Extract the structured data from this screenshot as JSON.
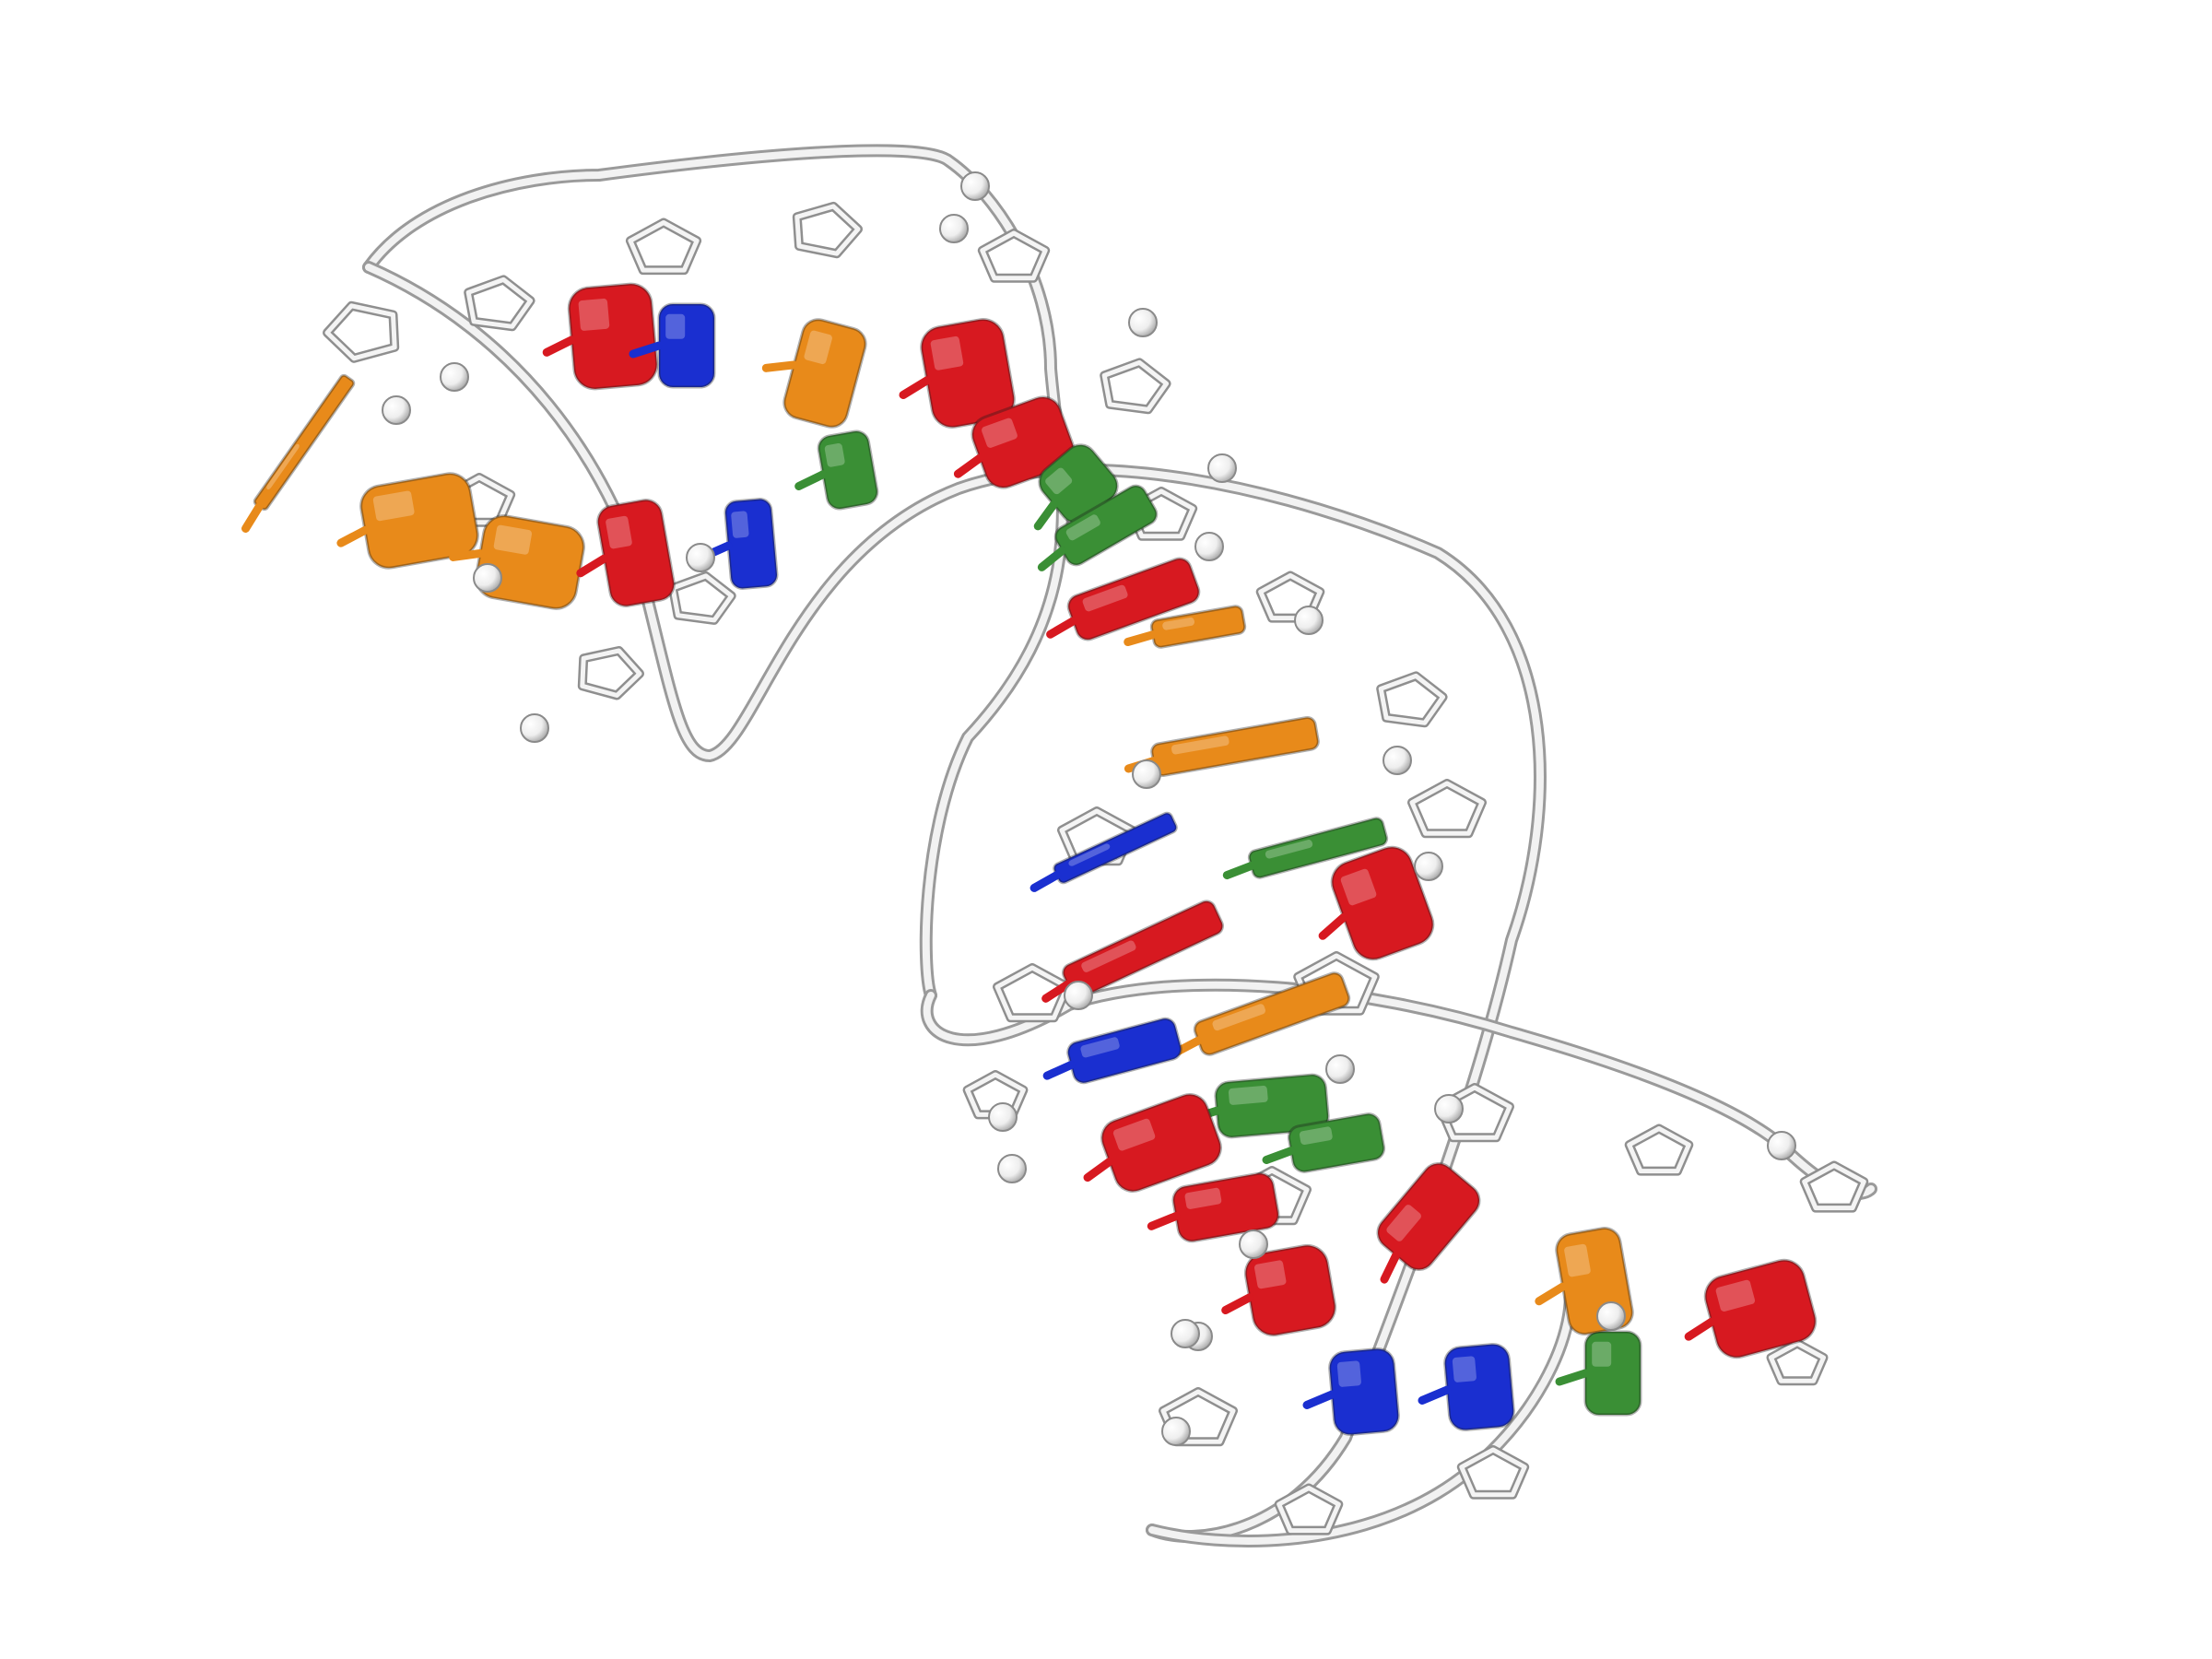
{
  "scene": {
    "kind": "molecular-render",
    "style": "cartoon-backbone-with-stick-nucleotides",
    "background": "#ffffff",
    "colors": {
      "backbone": "#e6e6e6",
      "backbone_edge": "#9a9a9a",
      "adenine": "#d71920",
      "guanine": "#e88a1a",
      "cytosine": "#1a2fd0",
      "uracil": "#3a8f35",
      "phosphate_sphere": "#f4f4f4"
    },
    "icons": {
      "backbone": "ribbon-tube",
      "sugar": "pentagon-ring",
      "base": "stacked-ring-slab",
      "phosphate": "sphere"
    }
  }
}
